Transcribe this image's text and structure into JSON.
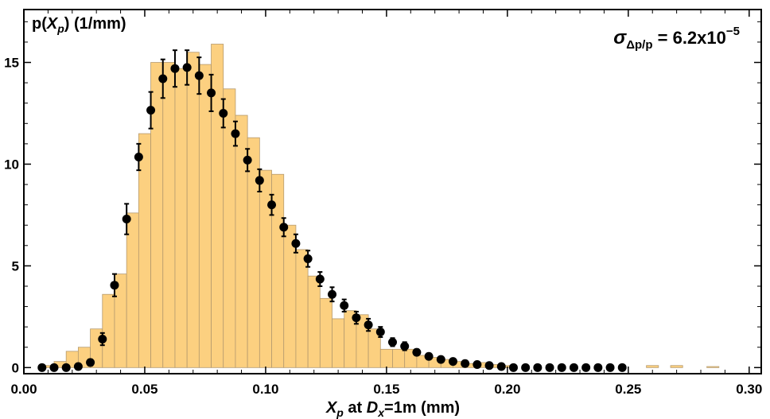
{
  "chart_data": {
    "type": "bar",
    "title": "",
    "ylabel": {
      "base": "p(",
      "var": "X",
      "sub": "p",
      "tail": ") (1/mm)"
    },
    "xlabel": {
      "var": "X",
      "sub": "p",
      "mid": " at ",
      "var2": "D",
      "sub2": "x",
      "tail": "=1m  (mm)"
    },
    "annotation": {
      "sigma": "σ",
      "sub": "Δp/p",
      "eq": " = 6.2x10",
      "exp": "−5"
    },
    "xlim": [
      0.0,
      0.305
    ],
    "ylim": [
      -0.3,
      17.6
    ],
    "xticks": [
      0.0,
      0.05,
      0.1,
      0.15,
      0.2,
      0.25,
      0.3
    ],
    "xtick_labels": [
      "0.00",
      "0.05",
      "0.10",
      "0.15",
      "0.20",
      "0.25",
      "0.30"
    ],
    "yticks": [
      0,
      5,
      10,
      15
    ],
    "ytick_labels": [
      "0",
      "5",
      "10",
      "15"
    ],
    "histogram": {
      "name": "histogram",
      "bin_width": 0.005,
      "bin_starts": [
        0.0075,
        0.0125,
        0.0175,
        0.0225,
        0.0275,
        0.0325,
        0.0375,
        0.0425,
        0.0475,
        0.0525,
        0.0575,
        0.0625,
        0.0675,
        0.0725,
        0.0775,
        0.0825,
        0.0875,
        0.0925,
        0.0975,
        0.1025,
        0.1075,
        0.1125,
        0.1175,
        0.1225,
        0.1275,
        0.1325,
        0.1375,
        0.1425,
        0.1475,
        0.1525,
        0.1575,
        0.1625,
        0.1675,
        0.1725,
        0.1775,
        0.1825,
        0.1875,
        0.1925,
        0.1975,
        0.2025,
        0.2075,
        0.2125,
        0.2175,
        0.2225,
        0.2275,
        0.2325,
        0.2375,
        0.2425,
        0.2475,
        0.2525,
        0.2575,
        0.2625,
        0.2675,
        0.2725,
        0.2775,
        0.2825
      ],
      "values": [
        0.1,
        0.3,
        0.8,
        1.0,
        1.9,
        3.6,
        4.6,
        7.6,
        11.5,
        15.0,
        15.0,
        14.7,
        15.5,
        14.9,
        15.9,
        13.7,
        12.4,
        11.3,
        9.7,
        9.5,
        7.0,
        5.8,
        4.5,
        3.4,
        2.4,
        2.8,
        2.6,
        1.9,
        0.9,
        0.9,
        0.9,
        0.6,
        0.5,
        0.4,
        0.3,
        0.2,
        0.25,
        0.15,
        0.1,
        0.0,
        0.0,
        0.0,
        0.0,
        0.0,
        0.0,
        0.0,
        0.0,
        0.0,
        0.0,
        0.0,
        0.1,
        0.0,
        0.1,
        0.0,
        0.0,
        0.05,
        0.1
      ]
    },
    "points": {
      "name": "model",
      "x": [
        0.0075,
        0.0125,
        0.0175,
        0.0225,
        0.0275,
        0.0325,
        0.0375,
        0.0425,
        0.0475,
        0.0525,
        0.0575,
        0.0625,
        0.0675,
        0.0725,
        0.0775,
        0.0825,
        0.0875,
        0.0925,
        0.0975,
        0.1025,
        0.1075,
        0.1125,
        0.1175,
        0.1225,
        0.1275,
        0.1325,
        0.1375,
        0.1425,
        0.1475,
        0.1525,
        0.1575,
        0.1625,
        0.1675,
        0.1725,
        0.1775,
        0.1825,
        0.1875,
        0.1925,
        0.1975,
        0.2025,
        0.2075,
        0.2125,
        0.2175,
        0.2225,
        0.2275,
        0.2325,
        0.2375,
        0.2425,
        0.2475
      ],
      "y": [
        0.0,
        0.0,
        0.0,
        0.05,
        0.25,
        1.4,
        4.05,
        7.3,
        10.35,
        12.65,
        14.2,
        14.7,
        14.75,
        14.35,
        13.5,
        12.5,
        11.5,
        10.2,
        9.2,
        8.0,
        6.9,
        6.1,
        5.35,
        4.35,
        3.6,
        3.05,
        2.45,
        2.1,
        1.75,
        1.25,
        1.05,
        0.75,
        0.55,
        0.4,
        0.3,
        0.2,
        0.15,
        0.1,
        0.05,
        0.0,
        0.0,
        0.0,
        0.0,
        0.0,
        0.0,
        0.0,
        0.0,
        0.0,
        0.0
      ],
      "err": [
        0.0,
        0.0,
        0.0,
        0.0,
        0.15,
        0.3,
        0.55,
        0.75,
        0.65,
        0.9,
        0.95,
        0.9,
        0.85,
        0.9,
        0.9,
        0.7,
        0.6,
        0.55,
        0.55,
        0.5,
        0.45,
        0.45,
        0.4,
        0.35,
        0.35,
        0.3,
        0.3,
        0.3,
        0.25,
        0.2,
        0.2,
        0.15,
        0.1,
        0.0,
        0.0,
        0.0,
        0.0,
        0.0,
        0.0,
        0.0,
        0.0,
        0.0,
        0.0,
        0.0,
        0.0,
        0.0,
        0.0,
        0.0,
        0.0
      ]
    },
    "colors": {
      "bar_fill": "#fcd080",
      "bar_stroke": "#b59a6e",
      "point": "#000000",
      "frame": "#000000"
    }
  }
}
